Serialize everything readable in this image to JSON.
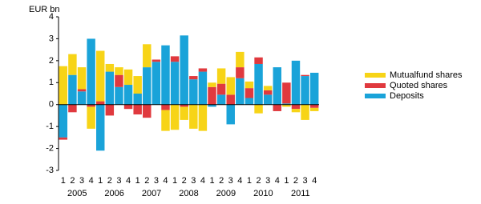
{
  "chart_data": {
    "type": "stacked_bar",
    "ylabel": "EUR bn",
    "categories": [
      "1",
      "2",
      "3",
      "4",
      "1",
      "2",
      "3",
      "4",
      "1",
      "2",
      "3",
      "4",
      "1",
      "2",
      "3",
      "4",
      "1",
      "2",
      "3",
      "4",
      "1",
      "2",
      "3",
      "4",
      "1",
      "2",
      "3",
      "4"
    ],
    "years": [
      "2005",
      "2006",
      "2007",
      "2008",
      "2009",
      "2010",
      "2011"
    ],
    "series": [
      {
        "name": "Deposits",
        "color": "#1aa3d9",
        "values": [
          -1.5,
          1.35,
          0.6,
          3.0,
          -2.1,
          1.5,
          0.8,
          0.9,
          0.5,
          1.7,
          1.95,
          2.7,
          1.95,
          3.15,
          1.15,
          1.5,
          -0.1,
          0.45,
          -0.9,
          1.2,
          0.3,
          1.85,
          0.45,
          1.7,
          0.05,
          2.0,
          1.3,
          1.45
        ]
      },
      {
        "name": "Quoted shares",
        "color": "#e0393e",
        "values": [
          -0.1,
          -0.35,
          0.1,
          -0.1,
          0.15,
          -0.5,
          0.55,
          -0.2,
          -0.45,
          -0.6,
          0.1,
          -0.25,
          0.25,
          -0.1,
          0.15,
          0.15,
          0.8,
          0.5,
          0.45,
          0.5,
          0.45,
          0.3,
          0.2,
          -0.3,
          0.95,
          -0.2,
          0.05,
          -0.15
        ]
      },
      {
        "name": "Mutualfund shares",
        "color": "#f7d417",
        "values": [
          1.75,
          0.95,
          1.0,
          -1.0,
          2.3,
          0.35,
          0.35,
          0.7,
          0.8,
          1.05,
          0,
          -0.95,
          -1.15,
          -0.6,
          -1.1,
          -1.2,
          0.2,
          0.7,
          0.8,
          0.7,
          0.3,
          -0.4,
          0.2,
          0,
          -0.1,
          -0.15,
          -0.7,
          -0.15
        ]
      }
    ],
    "ylim": [
      -3,
      4
    ],
    "yticks": [
      -3,
      -2,
      -1,
      0,
      1,
      2,
      3,
      4
    ]
  }
}
